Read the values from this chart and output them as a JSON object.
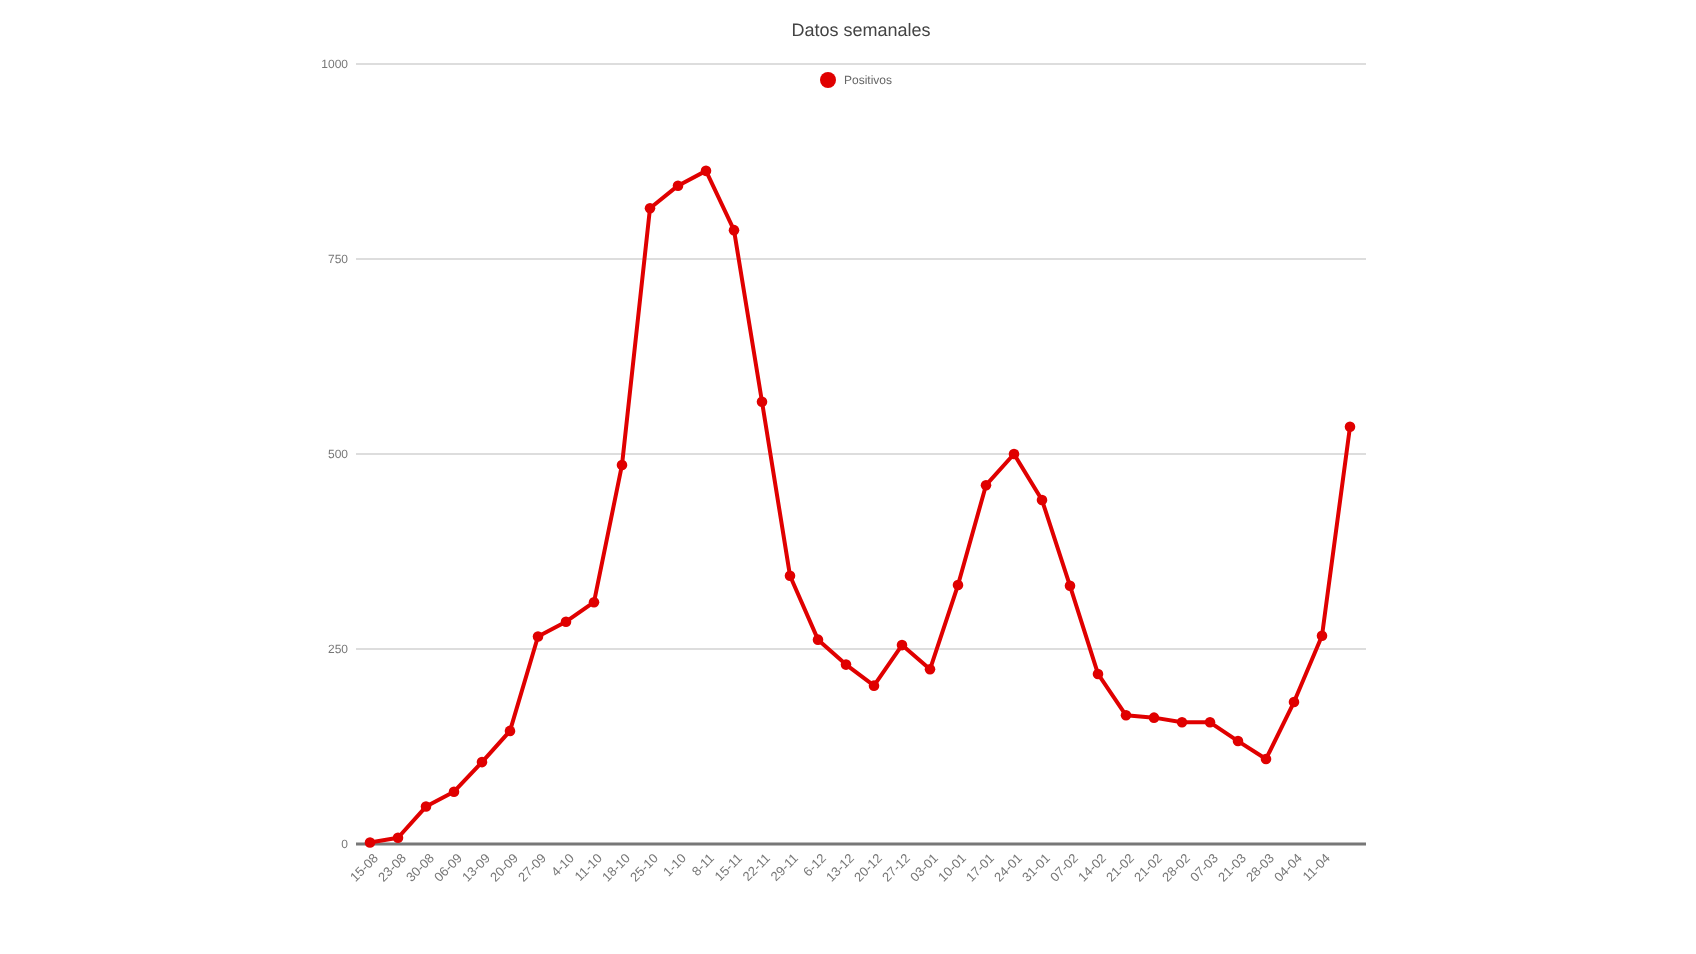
{
  "chart_data": {
    "type": "line",
    "title": "Datos semanales",
    "categories": [
      "15-08",
      "23-08",
      "30-08",
      "06-09",
      "13-09",
      "20-09",
      "27-09",
      "4-10",
      "11-10",
      "18-10",
      "25-10",
      "1-10",
      "8-11",
      "15-11",
      "22-11",
      "29-11",
      "6-12",
      "13-12",
      "20-12",
      "27-12",
      "03-01",
      "10-01",
      "17-01",
      "24-01",
      "31-01",
      "07-02",
      "14-02",
      "21-02",
      "21-02",
      "28-02",
      "07-03",
      "21-03",
      "28-03",
      "04-04",
      "11-04",
      null
    ],
    "series": [
      {
        "name": "Positivos",
        "color": "#e00000",
        "values": [
          2,
          8,
          48,
          67,
          105,
          145,
          266,
          285,
          310,
          486,
          815,
          844,
          863,
          787,
          567,
          344,
          262,
          230,
          203,
          255,
          224,
          332,
          460,
          500,
          441,
          331,
          218,
          165,
          162,
          156,
          156,
          132,
          109,
          182,
          267,
          535
        ]
      }
    ],
    "ylim": [
      0,
      1000
    ],
    "yticks": [
      0,
      250,
      500,
      750,
      1000
    ],
    "grid": "y",
    "legend": "top",
    "marker": "circle",
    "line_style": "solid"
  }
}
